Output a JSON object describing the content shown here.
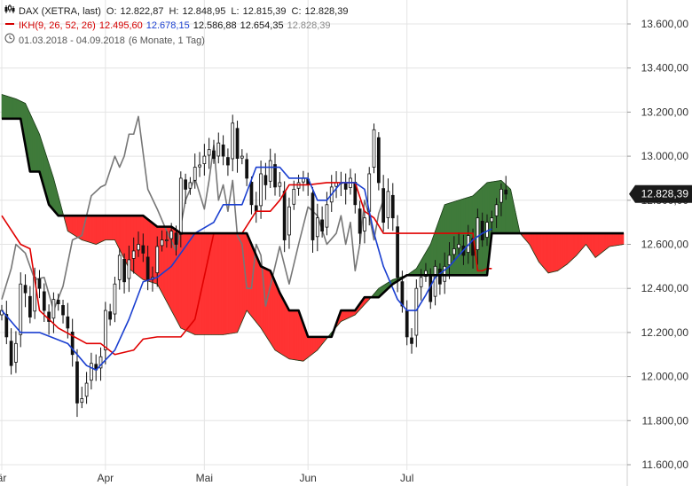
{
  "header": {
    "symbol_line": {
      "name": "DAX (XETRA, last)",
      "o_label": "O:",
      "o": "12.822,87",
      "h_label": "H:",
      "h": "12.848,95",
      "l_label": "L:",
      "l": "12.815,39",
      "c_label": "C:",
      "c": "12.828,39"
    },
    "indicator_line": {
      "name": "IKH(9, 26, 52, 26)",
      "v1": "12.495,60",
      "v2": "12.678,15",
      "v3": "12.586,88",
      "v4": "12.654,35",
      "v5": "12.828,39"
    },
    "period_line": {
      "range": "01.03.2018 - 04.09.2018",
      "period": "(6 Monate, 1 Tag)"
    }
  },
  "colors": {
    "price": "#111111",
    "tenkan": "#e00000",
    "kijun": "#1a3fd0",
    "chikou": "#777777",
    "senkou_b": "#000000",
    "cloud_bull": "#3f7a3a",
    "cloud_bear": "#ff3333",
    "last_price_tag": "#1a1a1a"
  },
  "chart_data": {
    "type": "line",
    "ylim": [
      11600,
      13700
    ],
    "y_ticks": [
      "11.600,00",
      "11.800,00",
      "12.000,00",
      "12.200,00",
      "12.400,00",
      "12.600,00",
      "12.800,00",
      "13.000,00",
      "13.200,00",
      "13.400,00",
      "13.600,00"
    ],
    "y_tick_values": [
      11600,
      11800,
      12000,
      12200,
      12400,
      12600,
      12800,
      13000,
      13200,
      13400,
      13600
    ],
    "x_ticks": [
      {
        "label": "är",
        "day": 0
      },
      {
        "label": "Apr",
        "day": 22
      },
      {
        "label": "Mai",
        "day": 43
      },
      {
        "label": "Jun",
        "day": 65
      },
      {
        "label": "Jul",
        "day": 86
      }
    ],
    "x_range_days": [
      0,
      132
    ],
    "last_price_label": "12.828,39",
    "last_price": 12828.39,
    "series": [
      {
        "name": "Close",
        "x": [
          0,
          1,
          2,
          3,
          4,
          5,
          6,
          7,
          8,
          9,
          10,
          11,
          12,
          13,
          14,
          15,
          16,
          17,
          18,
          19,
          20,
          21,
          22,
          23,
          24,
          25,
          26,
          27,
          28,
          29,
          30,
          31,
          32,
          33,
          34,
          35,
          36,
          37,
          38,
          39,
          40,
          41,
          42,
          43,
          44,
          45,
          46,
          47,
          48,
          49,
          50,
          51,
          52,
          53,
          54,
          55,
          56,
          57,
          58,
          59,
          60,
          61,
          62,
          63,
          64,
          65,
          66,
          67,
          68,
          69,
          70,
          71,
          72,
          73,
          74,
          75,
          76,
          77,
          78,
          79,
          80,
          81,
          82,
          83,
          84,
          85,
          86,
          87,
          88,
          89,
          90,
          91,
          92,
          93,
          94,
          95,
          96,
          97,
          98,
          99,
          100,
          101,
          102,
          103,
          104,
          105,
          106,
          107
        ],
        "values": [
          12300,
          12180,
          12050,
          12150,
          12420,
          12380,
          12270,
          12450,
          12400,
          12300,
          12250,
          12350,
          12330,
          12280,
          12220,
          12100,
          11880,
          11900,
          11970,
          12060,
          12030,
          12090,
          12300,
          12260,
          12420,
          12550,
          12430,
          12530,
          12570,
          12600,
          12560,
          12440,
          12450,
          12590,
          12620,
          12620,
          12660,
          12600,
          12900,
          12850,
          12880,
          12950,
          12960,
          13000,
          13030,
          12990,
          13060,
          13000,
          12960,
          13150,
          12990,
          13000,
          12900,
          12780,
          12750,
          12920,
          12870,
          12980,
          12860,
          12880,
          12620,
          12770,
          12850,
          12880,
          12900,
          12870,
          12620,
          12720,
          12660,
          12780,
          12860,
          12880,
          12880,
          12850,
          12900,
          12780,
          12650,
          12720,
          12920,
          13120,
          12880,
          12700,
          12840,
          12720,
          12450,
          12320,
          12180,
          12150,
          12400,
          12450,
          12480,
          12340,
          12500,
          12420,
          12500,
          12550,
          12580,
          12600,
          12550,
          12640,
          12550,
          12720,
          12620,
          12700,
          12720,
          12780,
          12850,
          12828
        ]
      },
      {
        "name": "Tenkan",
        "x": [
          0,
          4,
          6,
          8,
          12,
          18,
          21,
          24,
          28,
          30,
          33,
          36,
          38,
          41,
          45,
          47,
          51,
          54,
          57,
          59,
          61,
          65,
          69,
          72,
          75,
          77,
          79,
          81,
          83,
          86,
          88,
          90,
          92,
          95,
          97,
          100,
          101,
          102,
          103,
          104
        ],
        "values": [
          12730,
          12600,
          12580,
          12300,
          12220,
          12150,
          12150,
          12100,
          12120,
          12170,
          12180,
          12180,
          12180,
          12260,
          12650,
          12650,
          12650,
          12750,
          12750,
          12800,
          12870,
          12870,
          12880,
          12880,
          12880,
          12750,
          12720,
          12650,
          12650,
          12650,
          12650,
          12650,
          12650,
          12650,
          12650,
          12650,
          12480,
          12480,
          12490,
          12490
        ]
      },
      {
        "name": "Kijun",
        "x": [
          0,
          4,
          8,
          14,
          18,
          20,
          24,
          27,
          30,
          33,
          36,
          41,
          45,
          47,
          51,
          54,
          57,
          59,
          61,
          65,
          67,
          69,
          72,
          75,
          77,
          79,
          81,
          84,
          86,
          88,
          90,
          92,
          95,
          97,
          100,
          102,
          104
        ],
        "values": [
          12300,
          12200,
          12200,
          12150,
          12050,
          12030,
          12120,
          12260,
          12430,
          12450,
          12500,
          12650,
          12700,
          12780,
          12780,
          12950,
          12950,
          12950,
          12900,
          12900,
          12800,
          12800,
          12880,
          12880,
          12850,
          12650,
          12500,
          12350,
          12300,
          12300,
          12370,
          12450,
          12500,
          12550,
          12620,
          12650,
          12670
        ]
      },
      {
        "name": "Chikou",
        "x": [
          0,
          2,
          3,
          5,
          7,
          9,
          11,
          13,
          15,
          17,
          19,
          21,
          22,
          24,
          25,
          26,
          27,
          28,
          29,
          31,
          33,
          35,
          37,
          39,
          41,
          43,
          44,
          45,
          46,
          47,
          48,
          49,
          50,
          51,
          52,
          53,
          54,
          55,
          56,
          57,
          59,
          61,
          63,
          65,
          67,
          69,
          71,
          72,
          73,
          74,
          75,
          76,
          77,
          78,
          79,
          80,
          81
        ],
        "values": [
          12350,
          12490,
          12600,
          12560,
          12440,
          12450,
          12300,
          12410,
          12620,
          12640,
          12820,
          12860,
          12870,
          13000,
          12950,
          13000,
          13100,
          13100,
          13180,
          12850,
          12760,
          12660,
          12570,
          12800,
          12900,
          12760,
          12890,
          13050,
          12800,
          12870,
          12750,
          12890,
          12640,
          12600,
          12400,
          12400,
          12600,
          12550,
          12320,
          12410,
          12590,
          12420,
          12600,
          12770,
          12730,
          12600,
          12650,
          12730,
          12600,
          12700,
          12480,
          12600,
          12800,
          12730,
          12620,
          12740,
          12800
        ]
      },
      {
        "name": "Senkou A",
        "x": [
          0,
          3,
          5,
          8,
          11,
          14,
          17,
          20,
          22,
          24,
          27,
          30,
          33,
          36,
          38,
          41,
          44,
          47,
          50,
          52,
          55,
          58,
          61,
          64,
          67,
          70,
          72,
          75,
          78,
          80,
          83,
          86,
          88,
          91,
          94,
          97,
          100,
          103,
          106,
          108,
          110,
          112,
          114,
          116,
          118,
          120,
          122,
          124,
          126,
          129,
          132
        ],
        "values": [
          13280,
          13260,
          13240,
          13100,
          12900,
          12660,
          12620,
          12600,
          12620,
          12620,
          12490,
          12440,
          12420,
          12300,
          12220,
          12190,
          12190,
          12190,
          12200,
          12300,
          12220,
          12120,
          12080,
          12070,
          12120,
          12200,
          12250,
          12280,
          12350,
          12400,
          12440,
          12460,
          12490,
          12600,
          12780,
          12800,
          12820,
          12880,
          12890,
          12850,
          12650,
          12600,
          12520,
          12470,
          12480,
          12510,
          12550,
          12600,
          12540,
          12590,
          12600
        ]
      },
      {
        "name": "Senkou B",
        "x": [
          0,
          4,
          6,
          8,
          10,
          12,
          15,
          18,
          20,
          22,
          24,
          26,
          28,
          30,
          33,
          36,
          38,
          40,
          42,
          44,
          46,
          48,
          50,
          52,
          53,
          55,
          57,
          59,
          61,
          63,
          65,
          67,
          70,
          72,
          75,
          77,
          80,
          83,
          86,
          88,
          90,
          93,
          96,
          99,
          102,
          103,
          104,
          106,
          108,
          110,
          112,
          114,
          116,
          118,
          120,
          122,
          124,
          126,
          129,
          132
        ],
        "values": [
          13170,
          13170,
          12930,
          12930,
          12780,
          12730,
          12730,
          12730,
          12730,
          12730,
          12730,
          12730,
          12730,
          12730,
          12680,
          12680,
          12650,
          12650,
          12650,
          12650,
          12650,
          12650,
          12650,
          12650,
          12600,
          12500,
          12480,
          12380,
          12300,
          12300,
          12180,
          12180,
          12180,
          12300,
          12300,
          12360,
          12360,
          12420,
          12460,
          12460,
          12460,
          12460,
          12460,
          12460,
          12460,
          12460,
          12650,
          12650,
          12650,
          12650,
          12650,
          12650,
          12650,
          12650,
          12650,
          12650,
          12650,
          12650,
          12650,
          12650
        ]
      }
    ]
  }
}
